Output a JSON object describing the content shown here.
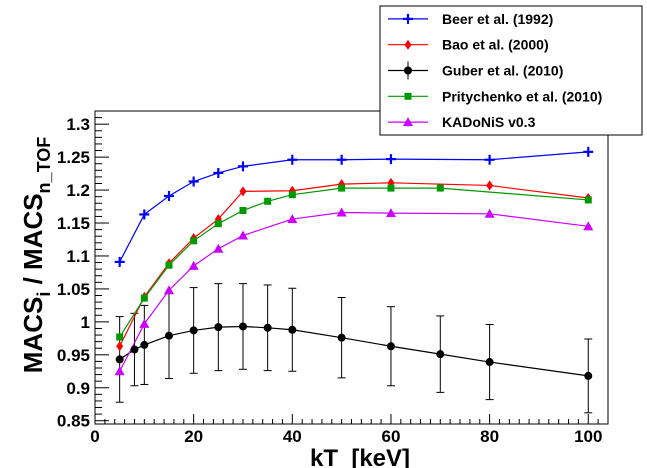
{
  "chart_data": {
    "type": "line",
    "xlabel": "kT  [keV]",
    "ylabel_main": "MACS",
    "ylabel_sub1": "i",
    "ylabel_mid": " / MACS",
    "ylabel_sub2": "n_TOF",
    "xlim": [
      0,
      104
    ],
    "ylim": [
      0.845,
      1.32
    ],
    "xticks": [
      0,
      20,
      40,
      60,
      80,
      100
    ],
    "xtick_labels": [
      "0",
      "20",
      "40",
      "60",
      "80",
      "100"
    ],
    "yticks": [
      0.85,
      0.9,
      0.95,
      1.0,
      1.05,
      1.1,
      1.15,
      1.2,
      1.25,
      1.3
    ],
    "ytick_labels": [
      "0.85",
      "0.9",
      "0.95",
      "1",
      "1.05",
      "1.1",
      "1.15",
      "1.2",
      "1.25",
      "1.3"
    ],
    "legend_position": "top-right",
    "grid": false,
    "series": [
      {
        "name": "Beer et al. (1992)",
        "color": "#0000ff",
        "marker": "plus",
        "x": [
          5,
          10,
          15,
          20,
          25,
          30,
          40,
          50,
          60,
          80,
          100
        ],
        "y": [
          1.091,
          1.163,
          1.191,
          1.213,
          1.226,
          1.236,
          1.246,
          1.246,
          1.247,
          1.246,
          1.258
        ]
      },
      {
        "name": "Bao et al. (2000)",
        "color": "#ff0000",
        "marker": "diamond",
        "x": [
          5,
          10,
          15,
          20,
          25,
          30,
          40,
          50,
          60,
          80,
          100
        ],
        "y": [
          0.963,
          1.038,
          1.089,
          1.127,
          1.156,
          1.198,
          1.199,
          1.209,
          1.211,
          1.207,
          1.188
        ]
      },
      {
        "name": "Guber et al. (2010)",
        "color": "#000000",
        "marker": "circle",
        "x": [
          5,
          8,
          10,
          15,
          20,
          25,
          30,
          35,
          40,
          50,
          60,
          70,
          80,
          100
        ],
        "y": [
          0.943,
          0.958,
          0.965,
          0.979,
          0.987,
          0.992,
          0.993,
          0.991,
          0.988,
          0.976,
          0.963,
          0.951,
          0.939,
          0.918
        ],
        "yerr": [
          0.065,
          0.055,
          0.06,
          0.065,
          0.065,
          0.066,
          0.065,
          0.065,
          0.063,
          0.061,
          0.06,
          0.058,
          0.057,
          0.056
        ]
      },
      {
        "name": "Pritychenko et al. (2010)",
        "color": "#009900",
        "marker": "square",
        "x": [
          5,
          10,
          15,
          20,
          25,
          30,
          35,
          40,
          50,
          60,
          70,
          100
        ],
        "y": [
          0.977,
          1.036,
          1.086,
          1.123,
          1.149,
          1.169,
          1.183,
          1.193,
          1.203,
          1.203,
          1.203,
          1.185
        ]
      },
      {
        "name": "KADoNiS v0.3",
        "color": "#cc00ff",
        "marker": "triangle",
        "x": [
          5,
          10,
          15,
          20,
          25,
          30,
          40,
          50,
          60,
          80,
          100
        ],
        "y": [
          0.925,
          0.997,
          1.048,
          1.085,
          1.111,
          1.131,
          1.156,
          1.166,
          1.165,
          1.164,
          1.145
        ]
      }
    ]
  }
}
